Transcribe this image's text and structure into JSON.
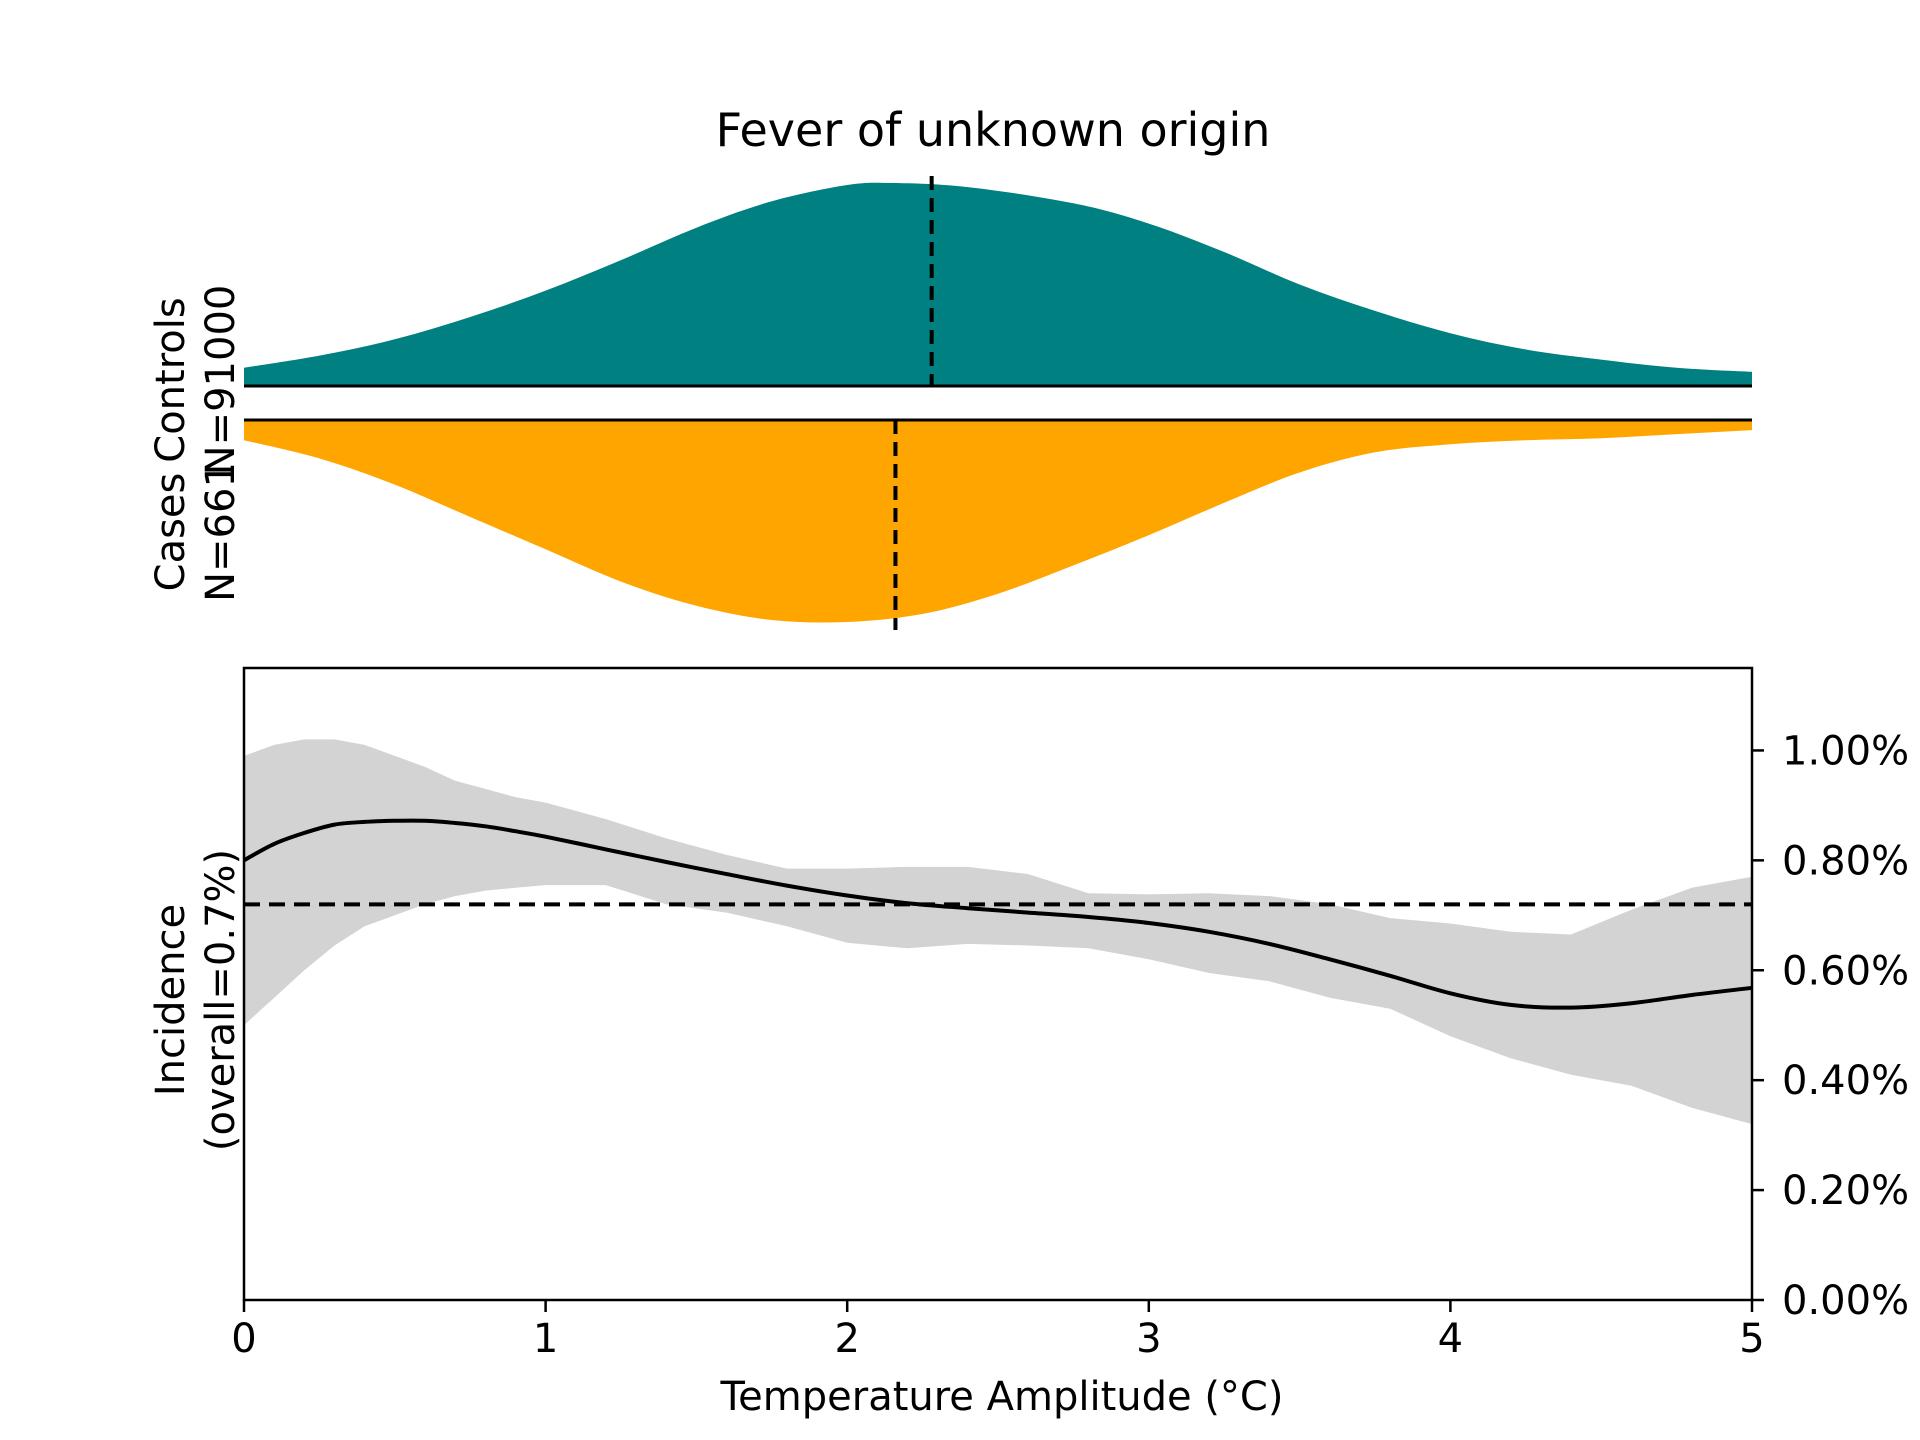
{
  "chart_data": {
    "type": "area",
    "title": "Fever of unknown origin",
    "xlabel": "Temperature Amplitude (°C)",
    "xlim": [
      0,
      5
    ],
    "x_ticks": [
      "0",
      "1",
      "2",
      "3",
      "4",
      "5"
    ],
    "controls": {
      "label": "Controls",
      "n_label": "N=91000",
      "color": "#008080",
      "median": 2.28,
      "density": {
        "x": [
          0,
          0.25,
          0.5,
          0.75,
          1.0,
          1.25,
          1.5,
          1.75,
          2.0,
          2.15,
          2.4,
          2.75,
          3.0,
          3.25,
          3.5,
          3.75,
          4.0,
          4.25,
          4.5,
          4.75,
          5.0
        ],
        "y": [
          0.09,
          0.15,
          0.23,
          0.34,
          0.47,
          0.62,
          0.78,
          0.91,
          0.99,
          1.0,
          0.98,
          0.9,
          0.8,
          0.66,
          0.5,
          0.37,
          0.26,
          0.18,
          0.13,
          0.09,
          0.07
        ]
      }
    },
    "cases": {
      "label": "Cases",
      "n_label": "N=661",
      "color": "#FFA500",
      "median": 2.16,
      "density": {
        "x": [
          0,
          0.25,
          0.5,
          0.75,
          1.0,
          1.25,
          1.5,
          1.75,
          2.0,
          2.25,
          2.5,
          2.75,
          3.0,
          3.25,
          3.5,
          3.75,
          4.0,
          4.25,
          4.5,
          4.75,
          5.0
        ],
        "y": [
          0.1,
          0.19,
          0.32,
          0.48,
          0.64,
          0.8,
          0.92,
          0.99,
          1.0,
          0.96,
          0.86,
          0.72,
          0.57,
          0.41,
          0.26,
          0.16,
          0.12,
          0.1,
          0.09,
          0.07,
          0.05
        ]
      }
    },
    "incidence": {
      "ylabel_line1": "Incidence",
      "ylabel_line2": "(overall=0.7%)",
      "ylim": [
        0,
        1.15
      ],
      "y_ticks": [
        {
          "value": 0.0,
          "label": "0.00%"
        },
        {
          "value": 0.2,
          "label": "0.20%"
        },
        {
          "value": 0.4,
          "label": "0.40%"
        },
        {
          "value": 0.6,
          "label": "0.60%"
        },
        {
          "value": 0.8,
          "label": "0.80%"
        },
        {
          "value": 1.0,
          "label": "1.00%"
        }
      ],
      "overall": 0.72,
      "line_color": "#000000",
      "band_color": "#D3D3D3",
      "x": [
        0,
        0.1,
        0.2,
        0.3,
        0.4,
        0.5,
        0.6,
        0.7,
        0.8,
        0.9,
        1.0,
        1.2,
        1.4,
        1.6,
        1.8,
        2.0,
        2.2,
        2.4,
        2.6,
        2.8,
        3.0,
        3.2,
        3.4,
        3.6,
        3.8,
        4.0,
        4.2,
        4.4,
        4.6,
        4.8,
        5.0
      ],
      "mean": [
        0.8,
        0.83,
        0.85,
        0.865,
        0.87,
        0.872,
        0.872,
        0.868,
        0.862,
        0.853,
        0.843,
        0.82,
        0.797,
        0.775,
        0.754,
        0.736,
        0.722,
        0.713,
        0.705,
        0.697,
        0.686,
        0.67,
        0.648,
        0.62,
        0.59,
        0.558,
        0.537,
        0.532,
        0.54,
        0.555,
        0.568
      ],
      "lower": [
        0.5,
        0.55,
        0.6,
        0.645,
        0.68,
        0.7,
        0.72,
        0.735,
        0.745,
        0.75,
        0.755,
        0.755,
        0.72,
        0.705,
        0.68,
        0.65,
        0.64,
        0.648,
        0.645,
        0.64,
        0.62,
        0.595,
        0.58,
        0.55,
        0.53,
        0.48,
        0.44,
        0.41,
        0.39,
        0.35,
        0.32
      ],
      "upper": [
        0.99,
        1.01,
        1.02,
        1.02,
        1.01,
        0.99,
        0.97,
        0.945,
        0.93,
        0.915,
        0.905,
        0.875,
        0.84,
        0.81,
        0.785,
        0.785,
        0.788,
        0.788,
        0.775,
        0.74,
        0.738,
        0.74,
        0.735,
        0.72,
        0.695,
        0.685,
        0.67,
        0.665,
        0.71,
        0.75,
        0.77
      ]
    }
  }
}
